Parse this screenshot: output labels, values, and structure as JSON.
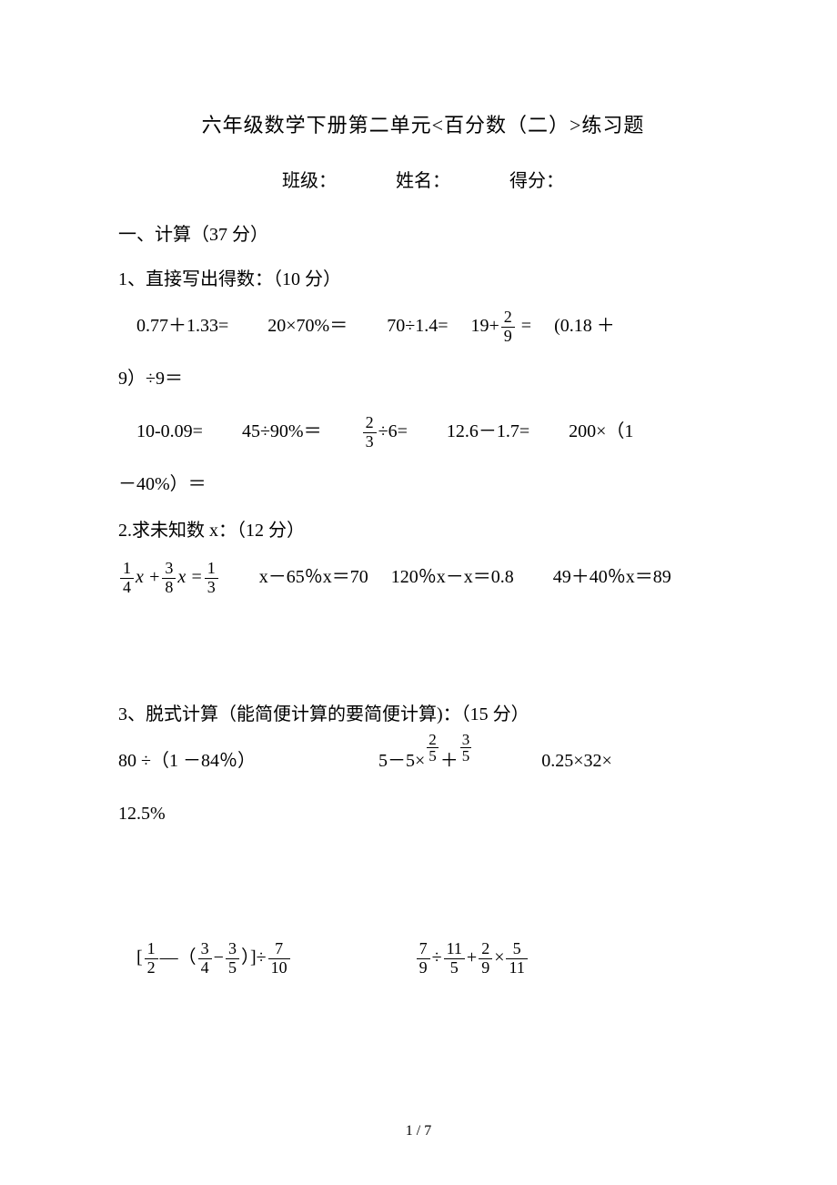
{
  "title": "六年级数学下册第二单元<百分数（二）>练习题",
  "info": {
    "class_label": "班级：",
    "name_label": "姓名：",
    "score_label": "得分："
  },
  "section1": {
    "heading": "一、计算（37 分）",
    "sub1": {
      "heading": "1、直接写出得数：（10 分）",
      "row1": {
        "p1": "0.77＋1.33=",
        "p2": "20×70%＝",
        "p3": "70÷1.4=",
        "p4_pre": "19+",
        "p4_frac_num": "2",
        "p4_frac_den": "9",
        "p4_post": " =",
        "p5_a": "(0.18 ＋",
        "p5_b": "9）÷9＝"
      },
      "row2": {
        "p1": "10-0.09=",
        "p2": "45÷90%＝",
        "p3_frac_num": "2",
        "p3_frac_den": "3",
        "p3_post": "÷6=",
        "p4": "12.6－1.7=",
        "p5_a": "200×（1",
        "p5_b": "－40%）＝"
      }
    },
    "sub2": {
      "heading": "2.求未知数 x：（12 分）",
      "eq1_f1_num": "1",
      "eq1_f1_den": "4",
      "eq1_mid1": "x +",
      "eq1_f2_num": "3",
      "eq1_f2_den": "8",
      "eq1_mid2": "x =",
      "eq1_f3_num": "1",
      "eq1_f3_den": "3",
      "eq2": "x－65％x＝70",
      "eq3": "120％x－x＝0.8",
      "eq4": "49＋40％x＝89"
    },
    "sub3": {
      "heading": "3、脱式计算（能简便计算的要简便计算)：（15 分）",
      "row1": {
        "p1": "80 ÷（1 －84％）",
        "p2_pre": "5－5×",
        "p2_f1_num": "2",
        "p2_f1_den": "5",
        "p2_mid": "＋",
        "p2_f2_num": "3",
        "p2_f2_den": "5",
        "p3_a": "0.25×32×",
        "p3_b": "12.5%"
      },
      "row2": {
        "p1_open": "[",
        "p1_f1_num": "1",
        "p1_f1_den": "2",
        "p1_mid1": "—（",
        "p1_f2_num": "3",
        "p1_f2_den": "4",
        "p1_mid2": "−",
        "p1_f3_num": "3",
        "p1_f3_den": "5",
        "p1_mid3": "）]÷",
        "p1_f4_num": "7",
        "p1_f4_den": "10",
        "p2_f1_num": "7",
        "p2_f1_den": "9",
        "p2_mid1": "÷",
        "p2_f2_num": "11",
        "p2_f2_den": "5",
        "p2_mid2": "+",
        "p2_f3_num": "2",
        "p2_f3_den": "9",
        "p2_mid3": "×",
        "p2_f4_num": "5",
        "p2_f4_den": "11"
      }
    }
  },
  "footer": "1 / 7"
}
